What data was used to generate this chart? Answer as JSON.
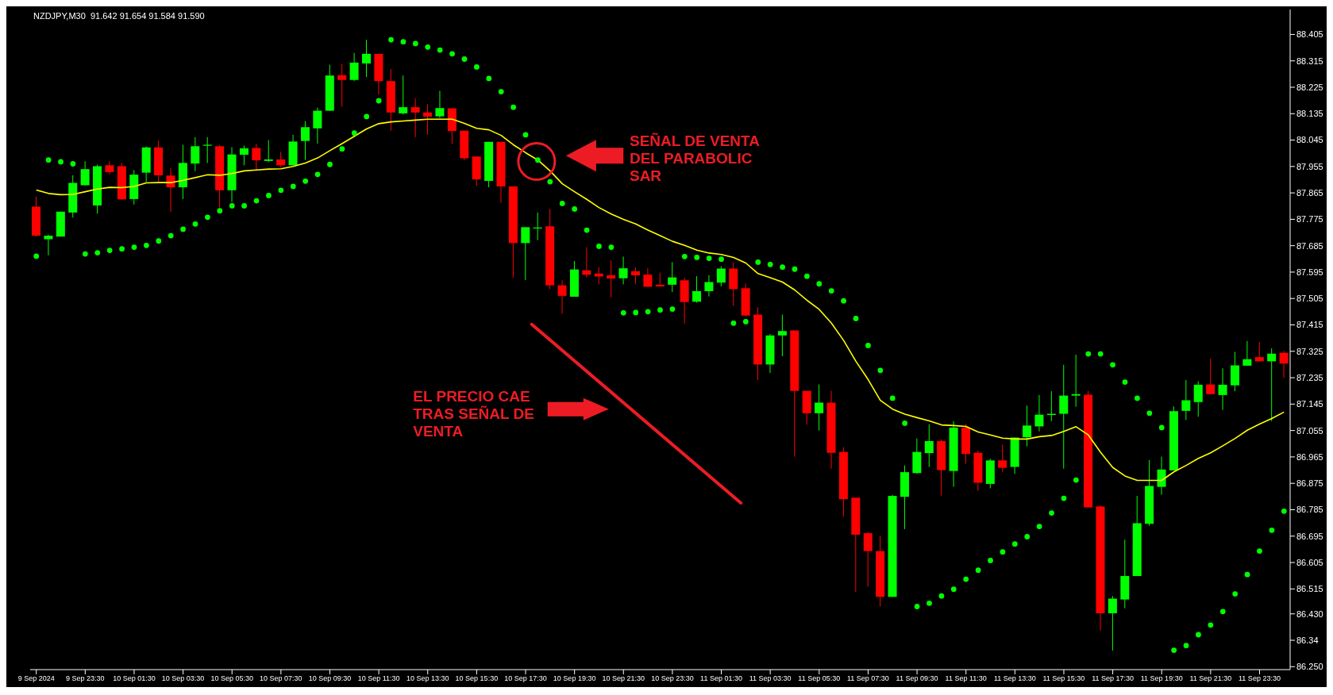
{
  "chart_data": {
    "type": "candlestick",
    "title": "NZDJPY,M30  91.642 91.654 91.584 91.590",
    "categories": [
      "9 Sep 2024",
      null,
      null,
      null,
      "9 Sep 23:30",
      null,
      null,
      null,
      "10 Sep 01:30",
      null,
      null,
      null,
      "10 Sep 03:30",
      null,
      null,
      null,
      "10 Sep 05:30",
      null,
      null,
      null,
      "10 Sep 07:30",
      null,
      null,
      null,
      "10 Sep 09:30",
      null,
      null,
      null,
      "10 Sep 11:30",
      null,
      null,
      null,
      "10 Sep 13:30",
      null,
      null,
      null,
      "10 Sep 15:30",
      null,
      null,
      null,
      "10 Sep 17:30",
      null,
      null,
      null,
      "10 Sep 19:30",
      null,
      null,
      null,
      "10 Sep 21:30",
      null,
      null,
      null,
      "10 Sep 23:30",
      null,
      null,
      null,
      "11 Sep 01:30",
      null,
      null,
      null,
      "11 Sep 03:30",
      null,
      null,
      null,
      "11 Sep 05:30",
      null,
      null,
      null,
      "11 Sep 07:30",
      null,
      null,
      null,
      "11 Sep 09:30",
      null,
      null,
      null,
      "11 Sep 11:30",
      null,
      null,
      null,
      "11 Sep 13:30",
      null,
      null,
      null,
      "11 Sep 15:30",
      null,
      null,
      null,
      "11 Sep 17:30",
      null,
      null,
      null,
      "11 Sep 19:30",
      null,
      null,
      null,
      "11 Sep 21:30",
      null,
      null,
      null,
      "11 Sep 23:30",
      null,
      null
    ],
    "ohlc": [
      [
        87.818,
        87.852,
        87.716,
        87.719
      ],
      [
        87.707,
        87.723,
        87.652,
        87.719
      ],
      [
        87.716,
        87.801,
        87.716,
        87.801
      ],
      [
        87.798,
        87.925,
        87.781,
        87.899
      ],
      [
        87.891,
        87.973,
        87.891,
        87.946
      ],
      [
        87.822,
        87.961,
        87.794,
        87.956
      ],
      [
        87.959,
        87.973,
        87.928,
        87.936
      ],
      [
        87.956,
        87.967,
        87.841,
        87.843
      ],
      [
        87.844,
        87.943,
        87.825,
        87.927
      ],
      [
        87.934,
        88.023,
        87.902,
        88.02
      ],
      [
        88.02,
        88.043,
        87.902,
        87.925
      ],
      [
        87.924,
        87.95,
        87.801,
        87.884
      ],
      [
        87.884,
        88.029,
        87.844,
        87.967
      ],
      [
        87.965,
        88.055,
        87.939,
        88.024
      ],
      [
        88.027,
        88.055,
        87.967,
        88.029
      ],
      [
        88.024,
        88.029,
        87.815,
        87.874
      ],
      [
        87.874,
        88.021,
        87.834,
        87.996
      ],
      [
        87.995,
        88.026,
        87.959,
        88.017
      ],
      [
        88.018,
        88.032,
        87.94,
        87.976
      ],
      [
        87.974,
        88.045,
        87.97,
        87.979
      ],
      [
        87.979,
        88.005,
        87.952,
        87.959
      ],
      [
        87.959,
        88.063,
        87.959,
        88.04
      ],
      [
        88.042,
        88.11,
        87.977,
        88.089
      ],
      [
        88.085,
        88.156,
        88.033,
        88.145
      ],
      [
        88.145,
        88.302,
        88.144,
        88.265
      ],
      [
        88.266,
        88.305,
        88.159,
        88.25
      ],
      [
        88.25,
        88.342,
        88.246,
        88.309
      ],
      [
        88.306,
        88.387,
        88.26,
        88.339
      ],
      [
        88.339,
        88.339,
        88.201,
        88.246
      ],
      [
        88.246,
        88.287,
        88.077,
        88.139
      ],
      [
        88.136,
        88.265,
        88.132,
        88.157
      ],
      [
        88.157,
        88.187,
        88.055,
        88.139
      ],
      [
        88.139,
        88.167,
        88.063,
        88.125
      ],
      [
        88.126,
        88.213,
        88.12,
        88.154
      ],
      [
        88.153,
        88.153,
        88.032,
        88.076
      ],
      [
        88.077,
        88.077,
        87.976,
        87.983
      ],
      [
        87.989,
        87.989,
        87.888,
        87.911
      ],
      [
        87.906,
        88.039,
        87.884,
        88.039
      ],
      [
        88.039,
        88.039,
        87.832,
        87.887
      ],
      [
        87.887,
        87.887,
        87.576,
        87.694
      ],
      [
        87.694,
        87.748,
        87.568,
        87.748
      ],
      [
        87.744,
        87.798,
        87.704,
        87.747
      ],
      [
        87.751,
        87.81,
        87.537,
        87.55
      ],
      [
        87.55,
        87.567,
        87.453,
        87.514
      ],
      [
        87.511,
        87.633,
        87.511,
        87.604
      ],
      [
        87.601,
        87.68,
        87.576,
        87.586
      ],
      [
        87.59,
        87.612,
        87.553,
        87.58
      ],
      [
        87.584,
        87.635,
        87.509,
        87.573
      ],
      [
        87.574,
        87.648,
        87.553,
        87.608
      ],
      [
        87.598,
        87.611,
        87.555,
        87.584
      ],
      [
        87.586,
        87.608,
        87.545,
        87.545
      ],
      [
        87.552,
        87.593,
        87.546,
        87.546
      ],
      [
        87.552,
        87.629,
        87.527,
        87.577
      ],
      [
        87.567,
        87.576,
        87.419,
        87.493
      ],
      [
        87.494,
        87.581,
        87.491,
        87.53
      ],
      [
        87.53,
        87.584,
        87.512,
        87.561
      ],
      [
        87.559,
        87.615,
        87.546,
        87.607
      ],
      [
        87.607,
        87.629,
        87.48,
        87.537
      ],
      [
        87.54,
        87.556,
        87.444,
        87.447
      ],
      [
        87.45,
        87.475,
        87.227,
        87.28
      ],
      [
        87.28,
        87.384,
        87.251,
        87.379
      ],
      [
        87.379,
        87.45,
        87.308,
        87.394
      ],
      [
        87.396,
        87.396,
        86.966,
        87.19
      ],
      [
        87.19,
        87.19,
        87.075,
        87.114
      ],
      [
        87.114,
        87.212,
        87.055,
        87.15
      ],
      [
        87.15,
        87.19,
        86.925,
        86.979
      ],
      [
        86.982,
        86.998,
        86.762,
        86.821
      ],
      [
        86.826,
        86.826,
        86.505,
        86.7
      ],
      [
        86.705,
        86.709,
        86.523,
        86.644
      ],
      [
        86.644,
        86.696,
        86.455,
        86.488
      ],
      [
        86.488,
        86.836,
        86.488,
        86.832
      ],
      [
        86.829,
        86.936,
        86.719,
        86.913
      ],
      [
        86.91,
        87.028,
        86.907,
        86.982
      ],
      [
        86.978,
        87.077,
        86.931,
        87.019
      ],
      [
        87.019,
        87.025,
        86.833,
        86.92
      ],
      [
        86.917,
        87.087,
        86.863,
        87.065
      ],
      [
        87.065,
        87.077,
        86.942,
        86.975
      ],
      [
        86.979,
        86.987,
        86.849,
        86.877
      ],
      [
        86.873,
        86.959,
        86.858,
        86.953
      ],
      [
        86.953,
        87.007,
        86.914,
        86.928
      ],
      [
        86.931,
        87.031,
        86.907,
        87.031
      ],
      [
        87.032,
        87.14,
        87.001,
        87.072
      ],
      [
        87.069,
        87.176,
        87.052,
        87.109
      ],
      [
        87.108,
        87.189,
        87.087,
        87.112
      ],
      [
        87.112,
        87.279,
        86.925,
        87.174
      ],
      [
        87.174,
        87.314,
        87.136,
        87.179
      ],
      [
        87.177,
        87.19,
        86.793,
        86.793
      ],
      [
        86.796,
        86.801,
        86.373,
        86.432
      ],
      [
        86.432,
        86.491,
        86.305,
        86.482
      ],
      [
        86.479,
        86.683,
        86.449,
        86.559
      ],
      [
        86.559,
        86.832,
        86.559,
        86.739
      ],
      [
        86.737,
        86.954,
        86.73,
        86.866
      ],
      [
        86.863,
        86.966,
        86.836,
        86.922
      ],
      [
        86.919,
        87.137,
        86.919,
        87.121
      ],
      [
        87.122,
        87.227,
        87.091,
        87.158
      ],
      [
        87.152,
        87.223,
        87.102,
        87.211
      ],
      [
        87.212,
        87.3,
        87.179,
        87.179
      ],
      [
        87.176,
        87.267,
        87.125,
        87.211
      ],
      [
        87.209,
        87.323,
        87.189,
        87.277
      ],
      [
        87.276,
        87.36,
        87.276,
        87.298
      ],
      [
        87.305,
        87.356,
        87.291,
        87.291
      ],
      [
        87.291,
        87.335,
        87.087,
        87.317
      ],
      [
        87.32,
        87.326,
        87.235,
        87.283
      ]
    ],
    "colors": [
      "#ff0000",
      "#00ff00",
      "#00ff00",
      "#00ff00",
      "#00ff00",
      "#00ff00",
      "#ff0000",
      "#ff0000",
      "#00ff00",
      "#00ff00",
      "#ff0000",
      "#ff0000",
      "#00ff00",
      "#00ff00",
      "#00ff00",
      "#ff0000",
      "#00ff00",
      "#00ff00",
      "#ff0000",
      "#00ff00",
      "#ff0000",
      "#00ff00",
      "#00ff00",
      "#00ff00",
      "#00ff00",
      "#ff0000",
      "#00ff00",
      "#00ff00",
      "#ff0000",
      "#ff0000",
      "#00ff00",
      "#ff0000",
      "#ff0000",
      "#00ff00",
      "#ff0000",
      "#ff0000",
      "#ff0000",
      "#00ff00",
      "#ff0000",
      "#ff0000",
      "#00ff00",
      "#00ff00",
      "#ff0000",
      "#ff0000",
      "#00ff00",
      "#ff0000",
      "#ff0000",
      "#ff0000",
      "#00ff00",
      "#ff0000",
      "#ff0000",
      "#ff0000",
      "#00ff00",
      "#ff0000",
      "#00ff00",
      "#00ff00",
      "#00ff00",
      "#ff0000",
      "#ff0000",
      "#ff0000",
      "#00ff00",
      "#00ff00",
      "#ff0000",
      "#ff0000",
      "#00ff00",
      "#ff0000",
      "#ff0000",
      "#ff0000",
      "#ff0000",
      "#ff0000",
      "#00ff00",
      "#00ff00",
      "#00ff00",
      "#00ff00",
      "#ff0000",
      "#00ff00",
      "#ff0000",
      "#ff0000",
      "#00ff00",
      "#ff0000",
      "#00ff00",
      "#00ff00",
      "#00ff00",
      "#00ff00",
      "#00ff00",
      "#00ff00",
      "#ff0000",
      "#ff0000",
      "#00ff00",
      "#00ff00",
      "#00ff00",
      "#00ff00",
      "#00ff00",
      "#00ff00",
      "#00ff00",
      "#00ff00",
      "#ff0000",
      "#00ff00",
      "#00ff00",
      "#00ff00",
      "#ff0000",
      "#00ff00",
      "#ff0000"
    ],
    "series": [
      {
        "type": "line",
        "color": "#ffff00",
        "line_style": "solid",
        "values": [
          87.875,
          87.863,
          87.859,
          87.86,
          87.869,
          87.878,
          87.884,
          87.883,
          87.887,
          87.899,
          87.9,
          87.9,
          87.908,
          87.917,
          87.927,
          87.925,
          87.931,
          87.94,
          87.943,
          87.946,
          87.947,
          87.955,
          87.967,
          87.984,
          88.009,
          88.033,
          88.058,
          88.083,
          88.101,
          88.107,
          88.11,
          88.113,
          88.116,
          88.116,
          88.116,
          88.102,
          88.085,
          88.08,
          88.061,
          88.029,
          88.002,
          87.977,
          87.94,
          87.896,
          87.869,
          87.843,
          87.815,
          87.793,
          87.775,
          87.759,
          87.738,
          87.719,
          87.7,
          87.686,
          87.67,
          87.66,
          87.655,
          87.645,
          87.626,
          87.59,
          87.576,
          87.561,
          87.534,
          87.499,
          87.468,
          87.421,
          87.362,
          87.291,
          87.229,
          87.158,
          87.128,
          87.111,
          87.099,
          87.088,
          87.074,
          87.072,
          87.069,
          87.05,
          87.04,
          87.029,
          87.026,
          87.026,
          87.034,
          87.038,
          87.052,
          87.068,
          87.04,
          86.981,
          86.929,
          86.9,
          86.885,
          86.885,
          86.885,
          86.914,
          86.936,
          86.96,
          86.979,
          87.003,
          87.028,
          87.056,
          87.077,
          87.096,
          87.118
        ]
      },
      {
        "type": "scatter",
        "color": "#00ff00",
        "marker": "circle",
        "values": [
          87.649,
          87.977,
          87.971,
          87.964,
          87.657,
          87.661,
          87.669,
          87.674,
          87.68,
          87.686,
          87.701,
          87.719,
          87.741,
          87.759,
          87.782,
          87.804,
          87.821,
          87.821,
          87.838,
          87.856,
          87.874,
          87.887,
          87.905,
          87.928,
          87.962,
          88.015,
          88.069,
          88.125,
          88.179,
          88.387,
          88.38,
          88.374,
          88.362,
          88.352,
          88.339,
          88.321,
          88.294,
          88.255,
          88.21,
          88.157,
          88.063,
          87.977,
          87.903,
          87.829,
          87.81,
          87.738,
          87.683,
          87.68,
          87.456,
          87.457,
          87.46,
          87.466,
          87.469,
          87.648,
          87.645,
          87.642,
          87.639,
          87.421,
          87.426,
          87.629,
          87.621,
          87.612,
          87.605,
          87.581,
          87.555,
          87.531,
          87.497,
          87.437,
          87.345,
          87.26,
          87.165,
          87.08,
          86.455,
          86.466,
          86.491,
          86.514,
          86.548,
          86.579,
          86.612,
          86.641,
          86.668,
          86.693,
          86.728,
          86.774,
          86.824,
          86.886,
          87.316,
          87.316,
          87.279,
          87.22,
          87.165,
          87.114,
          87.065,
          86.306,
          86.322,
          86.359,
          86.392,
          86.438,
          86.498,
          86.564,
          86.644,
          86.715,
          86.78
        ]
      }
    ],
    "ylim": [
      86.24,
      88.49
    ],
    "yticks": [
      88.405,
      88.315,
      88.225,
      88.135,
      88.045,
      87.955,
      87.865,
      87.775,
      87.685,
      87.595,
      87.505,
      87.415,
      87.325,
      87.235,
      87.145,
      87.055,
      86.965,
      86.875,
      86.785,
      86.695,
      86.605,
      86.515,
      {
        "value": 86.43,
        "label": "86.430"
      },
      86.34,
      {
        "value": 86.25,
        "label": "86.250"
      }
    ],
    "annotations": [
      "SEÑAL DE VENTA DEL PARABOLIC SAR",
      "EL PRECIO CAE TRAS SEÑAL DE VENTA"
    ]
  }
}
